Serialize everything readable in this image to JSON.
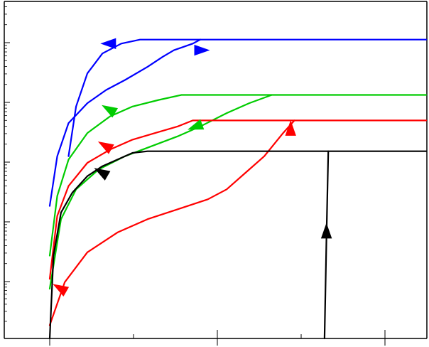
{
  "chart_data": {
    "type": "line",
    "title": "",
    "xlabel": "",
    "ylabel": "",
    "y_scale": "log",
    "xlim": [
      0,
      1
    ],
    "ylim": [
      0,
      1
    ],
    "grid": false,
    "legend": "none",
    "series": [
      {
        "color": "#0000ff",
        "direction": "return-upper",
        "points": [
          [
            0.05,
            0.55
          ],
          [
            0.07,
            0.7
          ],
          [
            0.1,
            0.8
          ],
          [
            0.14,
            0.86
          ],
          [
            0.19,
            0.89
          ],
          [
            0.24,
            0.902
          ],
          [
            1.0,
            0.902
          ]
        ]
      },
      {
        "color": "#0000ff",
        "direction": "forward-lower",
        "points": [
          [
            0.0,
            0.4
          ],
          [
            0.02,
            0.55
          ],
          [
            0.05,
            0.65
          ],
          [
            0.1,
            0.71
          ],
          [
            0.15,
            0.75
          ],
          [
            0.2,
            0.78
          ],
          [
            0.26,
            0.82
          ],
          [
            0.3,
            0.85
          ],
          [
            0.33,
            0.87
          ],
          [
            0.38,
            0.89
          ],
          [
            0.4,
            0.902
          ]
        ]
      },
      {
        "color": "#00cc00",
        "direction": "return-upper",
        "points": [
          [
            0.0,
            0.25
          ],
          [
            0.02,
            0.43
          ],
          [
            0.05,
            0.54
          ],
          [
            0.1,
            0.62
          ],
          [
            0.16,
            0.67
          ],
          [
            0.22,
            0.7
          ],
          [
            0.29,
            0.72
          ],
          [
            0.35,
            0.735
          ],
          [
            1.0,
            0.735
          ]
        ]
      },
      {
        "color": "#00cc00",
        "direction": "forward-lower",
        "points": [
          [
            0.0,
            0.15
          ],
          [
            0.03,
            0.36
          ],
          [
            0.07,
            0.45
          ],
          [
            0.13,
            0.51
          ],
          [
            0.2,
            0.55
          ],
          [
            0.27,
            0.58
          ],
          [
            0.34,
            0.61
          ],
          [
            0.4,
            0.64
          ],
          [
            0.47,
            0.68
          ],
          [
            0.53,
            0.71
          ],
          [
            0.59,
            0.735
          ]
        ]
      },
      {
        "color": "#ff0000",
        "direction": "return-upper",
        "points": [
          [
            0.0,
            0.18
          ],
          [
            0.02,
            0.37
          ],
          [
            0.05,
            0.46
          ],
          [
            0.1,
            0.53
          ],
          [
            0.16,
            0.57
          ],
          [
            0.22,
            0.6
          ],
          [
            0.28,
            0.62
          ],
          [
            0.34,
            0.64
          ],
          [
            0.38,
            0.658
          ],
          [
            1.0,
            0.658
          ]
        ]
      },
      {
        "color": "#ff0000",
        "direction": "forward-lower",
        "points": [
          [
            0.0,
            0.04
          ],
          [
            0.04,
            0.17
          ],
          [
            0.1,
            0.26
          ],
          [
            0.18,
            0.32
          ],
          [
            0.26,
            0.36
          ],
          [
            0.34,
            0.39
          ],
          [
            0.42,
            0.42
          ],
          [
            0.47,
            0.45
          ],
          [
            0.52,
            0.5
          ],
          [
            0.57,
            0.55
          ],
          [
            0.62,
            0.62
          ],
          [
            0.65,
            0.658
          ]
        ]
      },
      {
        "color": "#000000",
        "direction": "return-upper",
        "points": [
          [
            0.0,
            0.0
          ],
          [
            0.01,
            0.25
          ],
          [
            0.03,
            0.38
          ],
          [
            0.06,
            0.44
          ],
          [
            0.1,
            0.49
          ],
          [
            0.14,
            0.52
          ],
          [
            0.18,
            0.54
          ],
          [
            0.22,
            0.56
          ],
          [
            0.26,
            0.565
          ],
          [
            1.0,
            0.565
          ]
        ]
      },
      {
        "color": "#000000",
        "direction": "forward-vertical",
        "points": [
          [
            0.73,
            0.0
          ],
          [
            0.735,
            0.3
          ],
          [
            0.74,
            0.565
          ]
        ]
      }
    ],
    "arrows": [
      {
        "color": "#0000ff",
        "x": 0.16,
        "y": 0.89,
        "dir": "left"
      },
      {
        "color": "#0000ff",
        "x": 0.4,
        "y": 0.87,
        "dir": "right"
      },
      {
        "color": "#00cc00",
        "x": 0.16,
        "y": 0.69,
        "dir": "up-left"
      },
      {
        "color": "#00cc00",
        "x": 0.39,
        "y": 0.64,
        "dir": "down-left"
      },
      {
        "color": "#ff0000",
        "x": 0.15,
        "y": 0.58,
        "dir": "up-left"
      },
      {
        "color": "#ff0000",
        "x": 0.64,
        "y": 0.63,
        "dir": "up"
      },
      {
        "color": "#ff0000",
        "x": 0.03,
        "y": 0.15,
        "dir": "up-left"
      },
      {
        "color": "#000000",
        "x": 0.14,
        "y": 0.5,
        "dir": "up-left"
      },
      {
        "color": "#000000",
        "x": 0.735,
        "y": 0.32,
        "dir": "up"
      }
    ],
    "y_tick_count": 5,
    "x_tick_count": 4
  }
}
